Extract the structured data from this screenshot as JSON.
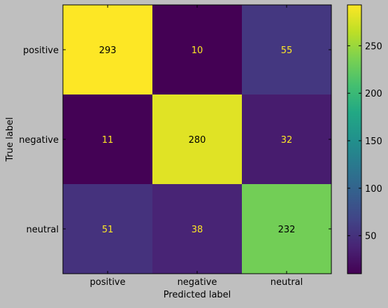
{
  "chart_data": {
    "type": "heatmap",
    "title": "",
    "xlabel": "Predicted label",
    "ylabel": "True label",
    "x_categories": [
      "positive",
      "negative",
      "neutral"
    ],
    "y_categories": [
      "positive",
      "negative",
      "neutral"
    ],
    "values": [
      [
        293,
        10,
        55
      ],
      [
        11,
        280,
        32
      ],
      [
        51,
        38,
        232
      ]
    ],
    "colormap": "viridis",
    "value_range": [
      10,
      293
    ],
    "colorbar_ticks": [
      50,
      100,
      150,
      200,
      250
    ],
    "grid": false
  }
}
